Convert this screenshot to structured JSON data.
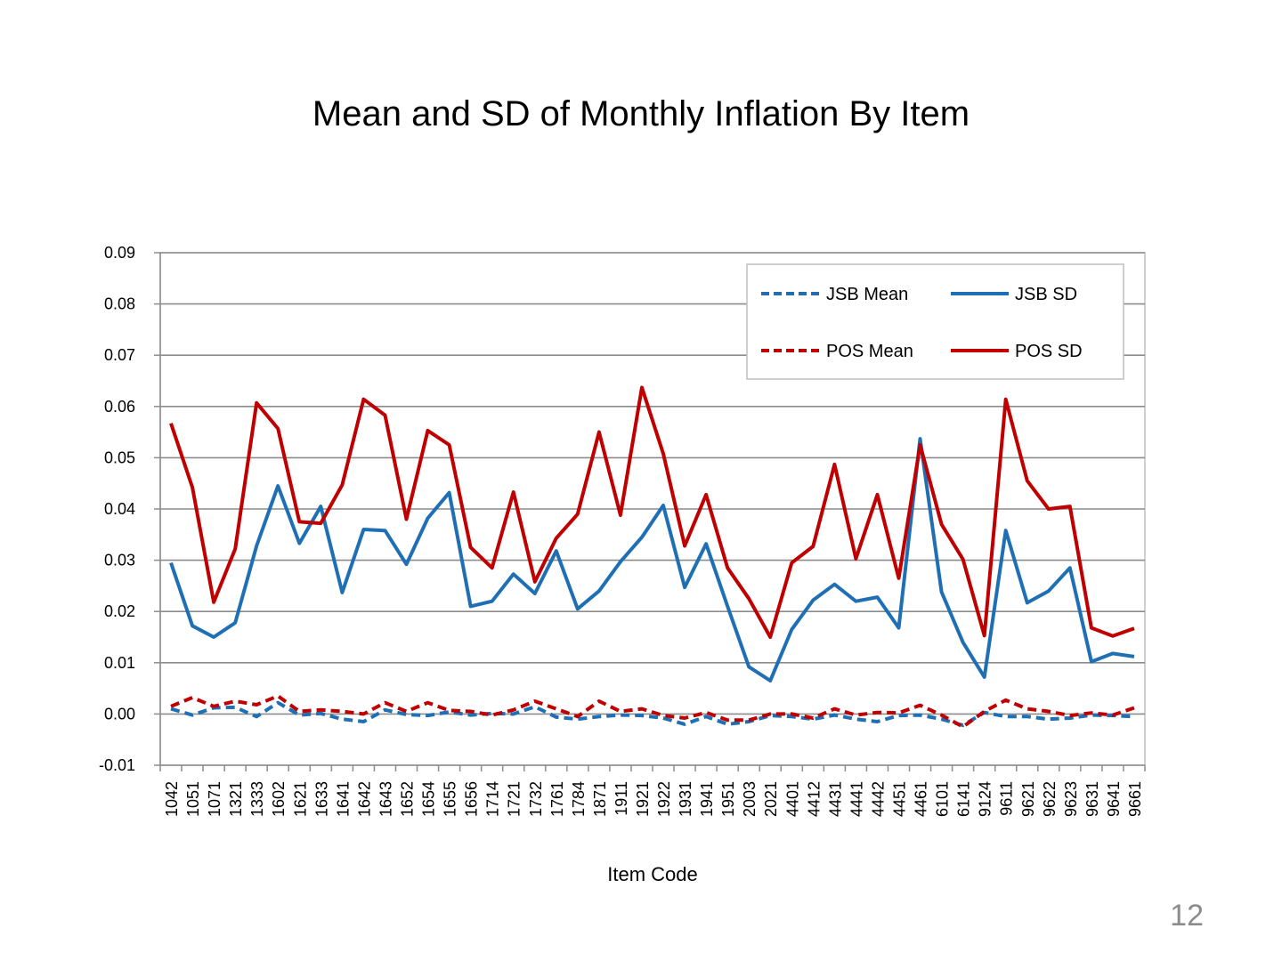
{
  "slide": {
    "title": "Mean and SD of Monthly Inflation By Item",
    "page_number": "12"
  },
  "chart_data": {
    "type": "line",
    "title": "Mean and SD of Monthly Inflation By Item",
    "xlabel": "Item Code",
    "ylabel": "",
    "ylim": [
      -0.01,
      0.09
    ],
    "ytick_step": 0.01,
    "ytick_labels": [
      "-0.01",
      "0.00",
      "0.01",
      "0.02",
      "0.03",
      "0.04",
      "0.05",
      "0.06",
      "0.07",
      "0.08",
      "0.09"
    ],
    "grid": true,
    "legend_position": "top-right",
    "categories": [
      "1042",
      "1051",
      "1071",
      "1321",
      "1333",
      "1602",
      "1621",
      "1633",
      "1641",
      "1642",
      "1643",
      "1652",
      "1654",
      "1655",
      "1656",
      "1714",
      "1721",
      "1732",
      "1761",
      "1784",
      "1871",
      "1911",
      "1921",
      "1922",
      "1931",
      "1941",
      "1951",
      "2003",
      "2021",
      "4401",
      "4412",
      "4431",
      "4441",
      "4442",
      "4451",
      "4461",
      "6101",
      "6141",
      "9124",
      "9611",
      "9621",
      "9622",
      "9623",
      "9631",
      "9641",
      "9661"
    ],
    "series": [
      {
        "name": "JSB Mean",
        "style": "dashed",
        "color": "#1f6fb5",
        "values": [
          0.001,
          -0.0002,
          0.0012,
          0.0013,
          -0.0005,
          0.0022,
          -0.0002,
          0.0001,
          -0.001,
          -0.0015,
          0.0008,
          -0.0001,
          -0.0003,
          0.0004,
          -0.0002,
          0.0001,
          0.0,
          0.0014,
          -0.0006,
          -0.001,
          -0.0005,
          -0.0002,
          -0.0003,
          -0.0008,
          -0.002,
          -0.0005,
          -0.002,
          -0.0015,
          -0.0003,
          -0.0005,
          -0.001,
          -0.0002,
          -0.001,
          -0.0015,
          -0.0003,
          -0.0002,
          -0.001,
          -0.0022,
          0.0003,
          -0.0005,
          -0.0005,
          -0.001,
          -0.0008,
          -0.0002,
          -0.0003,
          -0.0005
        ]
      },
      {
        "name": "JSB SD",
        "style": "solid",
        "color": "#1f6fb5",
        "values": [
          0.0295,
          0.0172,
          0.015,
          0.0178,
          0.0328,
          0.0445,
          0.0333,
          0.0405,
          0.0237,
          0.036,
          0.0358,
          0.0292,
          0.0382,
          0.0432,
          0.021,
          0.022,
          0.0273,
          0.0235,
          0.0318,
          0.0205,
          0.024,
          0.0297,
          0.0345,
          0.0407,
          0.0247,
          0.0332,
          0.021,
          0.0092,
          0.0065,
          0.0165,
          0.0222,
          0.0253,
          0.022,
          0.0228,
          0.0168,
          0.0537,
          0.0238,
          0.014,
          0.0072,
          0.0358,
          0.0217,
          0.024,
          0.0285,
          0.0102,
          0.0118,
          0.0112
        ]
      },
      {
        "name": "POS Mean",
        "style": "dashed",
        "color": "#c00000",
        "values": [
          0.0015,
          0.0032,
          0.0015,
          0.0025,
          0.0018,
          0.0035,
          0.0005,
          0.0008,
          0.0005,
          0.0,
          0.0022,
          0.0005,
          0.0022,
          0.0007,
          0.0005,
          -0.0002,
          0.0008,
          0.0025,
          0.001,
          -0.0005,
          0.0025,
          0.0005,
          0.001,
          -0.0003,
          -0.0008,
          0.0003,
          -0.0012,
          -0.0012,
          0.0,
          0.0,
          -0.0008,
          0.001,
          -0.0002,
          0.0003,
          0.0002,
          0.0017,
          -0.0002,
          -0.0025,
          0.0005,
          0.0027,
          0.001,
          0.0005,
          -0.0003,
          0.0002,
          -0.0002,
          0.0012
        ]
      },
      {
        "name": "POS SD",
        "style": "solid",
        "color": "#c00000",
        "values": [
          0.0567,
          0.0442,
          0.0218,
          0.0322,
          0.0607,
          0.0557,
          0.0375,
          0.0372,
          0.0447,
          0.0614,
          0.0583,
          0.038,
          0.0553,
          0.0525,
          0.0325,
          0.0285,
          0.0433,
          0.0258,
          0.0343,
          0.039,
          0.055,
          0.0388,
          0.0637,
          0.0508,
          0.0328,
          0.0428,
          0.0285,
          0.0225,
          0.015,
          0.0295,
          0.0327,
          0.0487,
          0.0303,
          0.0428,
          0.0265,
          0.0525,
          0.037,
          0.0302,
          0.0153,
          0.0614,
          0.0455,
          0.04,
          0.0405,
          0.0168,
          0.0152,
          0.0167
        ]
      }
    ]
  }
}
